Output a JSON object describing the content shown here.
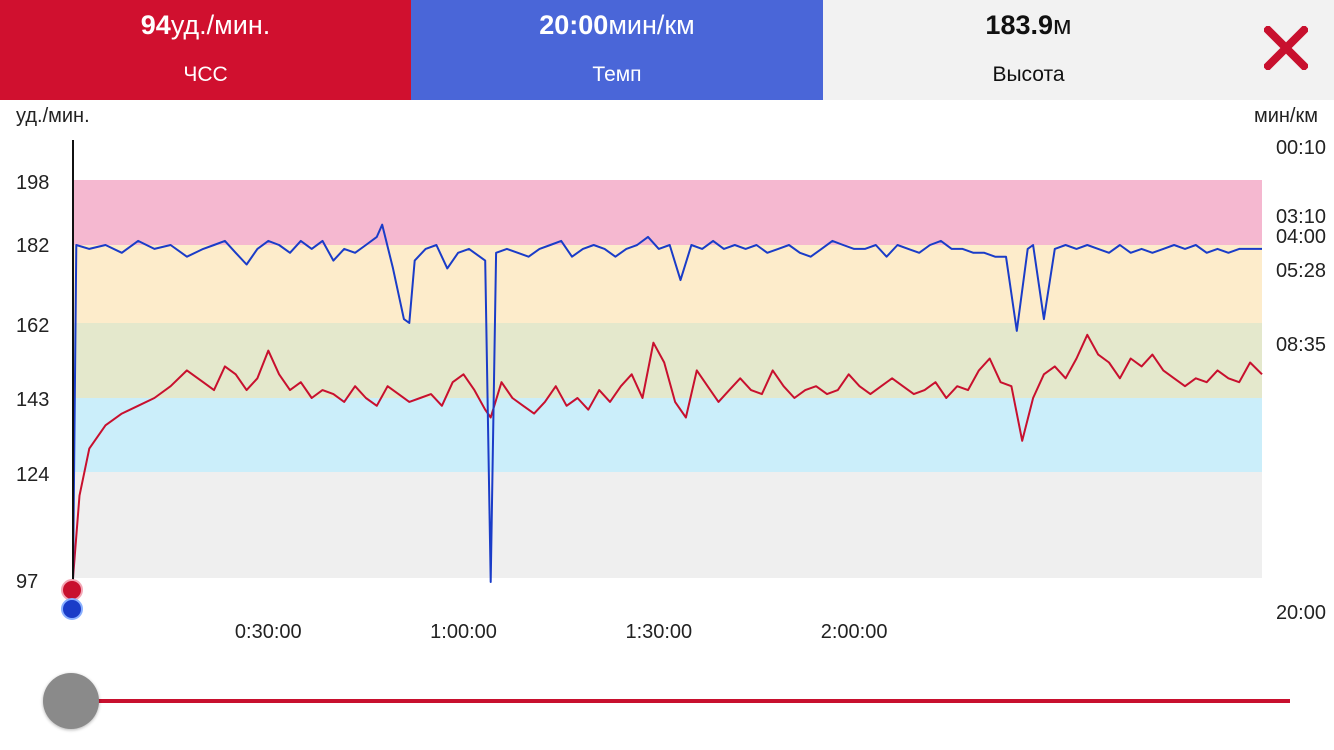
{
  "header": {
    "tabs": [
      {
        "value": "94",
        "unit": "уд./мин.",
        "label": "ЧСС",
        "color": "#d0102f"
      },
      {
        "value": "20:00",
        "unit": "мин/км",
        "label": "Темп",
        "color": "#4a66d8"
      },
      {
        "value": "183.9",
        "unit": "м",
        "label": "Высота",
        "color": "#f2f2f2"
      }
    ],
    "close_icon": "close-icon",
    "close_color": "#c8102e"
  },
  "chart_data": {
    "type": "line",
    "left_axis_title": "уд./мин.",
    "right_axis_title": "мин/км",
    "left_ticks": [
      "198",
      "182",
      "162",
      "143",
      "124",
      "97"
    ],
    "right_ticks": [
      "00:10",
      "03:10",
      "04:00",
      "05:28",
      "08:35",
      "20:00"
    ],
    "x_ticks": [
      "0:30:00",
      "1:00:00",
      "1:30:00",
      "2:00:00"
    ],
    "x_range_seconds": [
      0,
      10960
    ],
    "hr_range": [
      92,
      198
    ],
    "zones": [
      {
        "from": 182,
        "to": 198,
        "color": "#f5b8d0"
      },
      {
        "from": 162,
        "to": 182,
        "color": "#fdeccb"
      },
      {
        "from": 143,
        "to": 162,
        "color": "#e4e8cc"
      },
      {
        "from": 124,
        "to": 143,
        "color": "#cbeefa"
      },
      {
        "from": 97,
        "to": 124,
        "color": "#efefef"
      }
    ],
    "series": [
      {
        "key": "hr",
        "color": "#c8102e",
        "points": [
          [
            0,
            97
          ],
          [
            60,
            118
          ],
          [
            150,
            130
          ],
          [
            300,
            136
          ],
          [
            450,
            139
          ],
          [
            600,
            141
          ],
          [
            750,
            143
          ],
          [
            900,
            146
          ],
          [
            1050,
            150
          ],
          [
            1200,
            147
          ],
          [
            1300,
            145
          ],
          [
            1400,
            151
          ],
          [
            1500,
            149
          ],
          [
            1600,
            145
          ],
          [
            1700,
            148
          ],
          [
            1800,
            155
          ],
          [
            1900,
            149
          ],
          [
            2000,
            145
          ],
          [
            2100,
            147
          ],
          [
            2200,
            143
          ],
          [
            2300,
            145
          ],
          [
            2400,
            144
          ],
          [
            2500,
            142
          ],
          [
            2600,
            146
          ],
          [
            2700,
            143
          ],
          [
            2800,
            141
          ],
          [
            2900,
            146
          ],
          [
            3000,
            144
          ],
          [
            3100,
            142
          ],
          [
            3200,
            143
          ],
          [
            3300,
            144
          ],
          [
            3400,
            141
          ],
          [
            3500,
            147
          ],
          [
            3600,
            149
          ],
          [
            3700,
            145
          ],
          [
            3800,
            140
          ],
          [
            3850,
            138
          ],
          [
            3950,
            147
          ],
          [
            4050,
            143
          ],
          [
            4150,
            141
          ],
          [
            4250,
            139
          ],
          [
            4350,
            142
          ],
          [
            4450,
            146
          ],
          [
            4550,
            141
          ],
          [
            4650,
            143
          ],
          [
            4750,
            140
          ],
          [
            4850,
            145
          ],
          [
            4950,
            142
          ],
          [
            5050,
            146
          ],
          [
            5150,
            149
          ],
          [
            5250,
            143
          ],
          [
            5350,
            157
          ],
          [
            5450,
            152
          ],
          [
            5550,
            142
          ],
          [
            5650,
            138
          ],
          [
            5750,
            150
          ],
          [
            5850,
            146
          ],
          [
            5950,
            142
          ],
          [
            6050,
            145
          ],
          [
            6150,
            148
          ],
          [
            6250,
            145
          ],
          [
            6350,
            144
          ],
          [
            6450,
            150
          ],
          [
            6550,
            146
          ],
          [
            6650,
            143
          ],
          [
            6750,
            145
          ],
          [
            6850,
            146
          ],
          [
            6950,
            144
          ],
          [
            7050,
            145
          ],
          [
            7150,
            149
          ],
          [
            7250,
            146
          ],
          [
            7350,
            144
          ],
          [
            7450,
            146
          ],
          [
            7550,
            148
          ],
          [
            7650,
            146
          ],
          [
            7750,
            144
          ],
          [
            7850,
            145
          ],
          [
            7950,
            147
          ],
          [
            8050,
            143
          ],
          [
            8150,
            146
          ],
          [
            8250,
            145
          ],
          [
            8350,
            150
          ],
          [
            8450,
            153
          ],
          [
            8550,
            147
          ],
          [
            8650,
            146
          ],
          [
            8750,
            132
          ],
          [
            8850,
            143
          ],
          [
            8950,
            149
          ],
          [
            9050,
            151
          ],
          [
            9150,
            148
          ],
          [
            9250,
            153
          ],
          [
            9350,
            159
          ],
          [
            9450,
            154
          ],
          [
            9550,
            152
          ],
          [
            9650,
            148
          ],
          [
            9750,
            153
          ],
          [
            9850,
            151
          ],
          [
            9950,
            154
          ],
          [
            10050,
            150
          ],
          [
            10150,
            148
          ],
          [
            10250,
            146
          ],
          [
            10350,
            148
          ],
          [
            10450,
            147
          ],
          [
            10550,
            150
          ],
          [
            10650,
            148
          ],
          [
            10750,
            147
          ],
          [
            10850,
            152
          ],
          [
            10960,
            149
          ]
        ]
      },
      {
        "key": "pace",
        "color": "#1a3cc8",
        "points": [
          [
            0,
            96
          ],
          [
            30,
            182
          ],
          [
            150,
            181
          ],
          [
            300,
            182
          ],
          [
            450,
            180
          ],
          [
            600,
            183
          ],
          [
            750,
            181
          ],
          [
            900,
            182
          ],
          [
            1050,
            179
          ],
          [
            1200,
            181
          ],
          [
            1300,
            182
          ],
          [
            1400,
            183
          ],
          [
            1500,
            180
          ],
          [
            1600,
            177
          ],
          [
            1700,
            181
          ],
          [
            1800,
            183
          ],
          [
            1900,
            182
          ],
          [
            2000,
            180
          ],
          [
            2100,
            183
          ],
          [
            2200,
            181
          ],
          [
            2300,
            183
          ],
          [
            2400,
            178
          ],
          [
            2500,
            181
          ],
          [
            2600,
            180
          ],
          [
            2700,
            182
          ],
          [
            2800,
            184
          ],
          [
            2850,
            187
          ],
          [
            2950,
            176
          ],
          [
            3050,
            163
          ],
          [
            3100,
            162
          ],
          [
            3150,
            178
          ],
          [
            3250,
            181
          ],
          [
            3350,
            182
          ],
          [
            3450,
            176
          ],
          [
            3550,
            180
          ],
          [
            3650,
            181
          ],
          [
            3750,
            179
          ],
          [
            3800,
            178
          ],
          [
            3850,
            96
          ],
          [
            3900,
            180
          ],
          [
            4000,
            181
          ],
          [
            4100,
            180
          ],
          [
            4200,
            179
          ],
          [
            4300,
            181
          ],
          [
            4400,
            182
          ],
          [
            4500,
            183
          ],
          [
            4600,
            179
          ],
          [
            4700,
            181
          ],
          [
            4800,
            182
          ],
          [
            4900,
            181
          ],
          [
            5000,
            179
          ],
          [
            5100,
            181
          ],
          [
            5200,
            182
          ],
          [
            5300,
            184
          ],
          [
            5400,
            181
          ],
          [
            5500,
            182
          ],
          [
            5600,
            173
          ],
          [
            5700,
            182
          ],
          [
            5800,
            181
          ],
          [
            5900,
            183
          ],
          [
            6000,
            181
          ],
          [
            6100,
            182
          ],
          [
            6200,
            181
          ],
          [
            6300,
            182
          ],
          [
            6400,
            180
          ],
          [
            6500,
            181
          ],
          [
            6600,
            182
          ],
          [
            6700,
            180
          ],
          [
            6800,
            179
          ],
          [
            6900,
            181
          ],
          [
            7000,
            183
          ],
          [
            7100,
            182
          ],
          [
            7200,
            181
          ],
          [
            7300,
            181
          ],
          [
            7400,
            182
          ],
          [
            7500,
            179
          ],
          [
            7600,
            182
          ],
          [
            7700,
            181
          ],
          [
            7800,
            180
          ],
          [
            7900,
            182
          ],
          [
            8000,
            183
          ],
          [
            8100,
            181
          ],
          [
            8200,
            181
          ],
          [
            8300,
            180
          ],
          [
            8400,
            180
          ],
          [
            8500,
            179
          ],
          [
            8600,
            179
          ],
          [
            8700,
            160
          ],
          [
            8800,
            181
          ],
          [
            8850,
            182
          ],
          [
            8950,
            163
          ],
          [
            9050,
            181
          ],
          [
            9150,
            182
          ],
          [
            9250,
            181
          ],
          [
            9350,
            182
          ],
          [
            9450,
            181
          ],
          [
            9550,
            180
          ],
          [
            9650,
            182
          ],
          [
            9750,
            180
          ],
          [
            9850,
            181
          ],
          [
            9950,
            180
          ],
          [
            10050,
            181
          ],
          [
            10150,
            182
          ],
          [
            10250,
            181
          ],
          [
            10350,
            182
          ],
          [
            10450,
            180
          ],
          [
            10550,
            181
          ],
          [
            10650,
            180
          ],
          [
            10750,
            181
          ],
          [
            10850,
            181
          ],
          [
            10960,
            181
          ]
        ]
      }
    ],
    "grid": false
  },
  "slider": {
    "position": 0.0
  }
}
